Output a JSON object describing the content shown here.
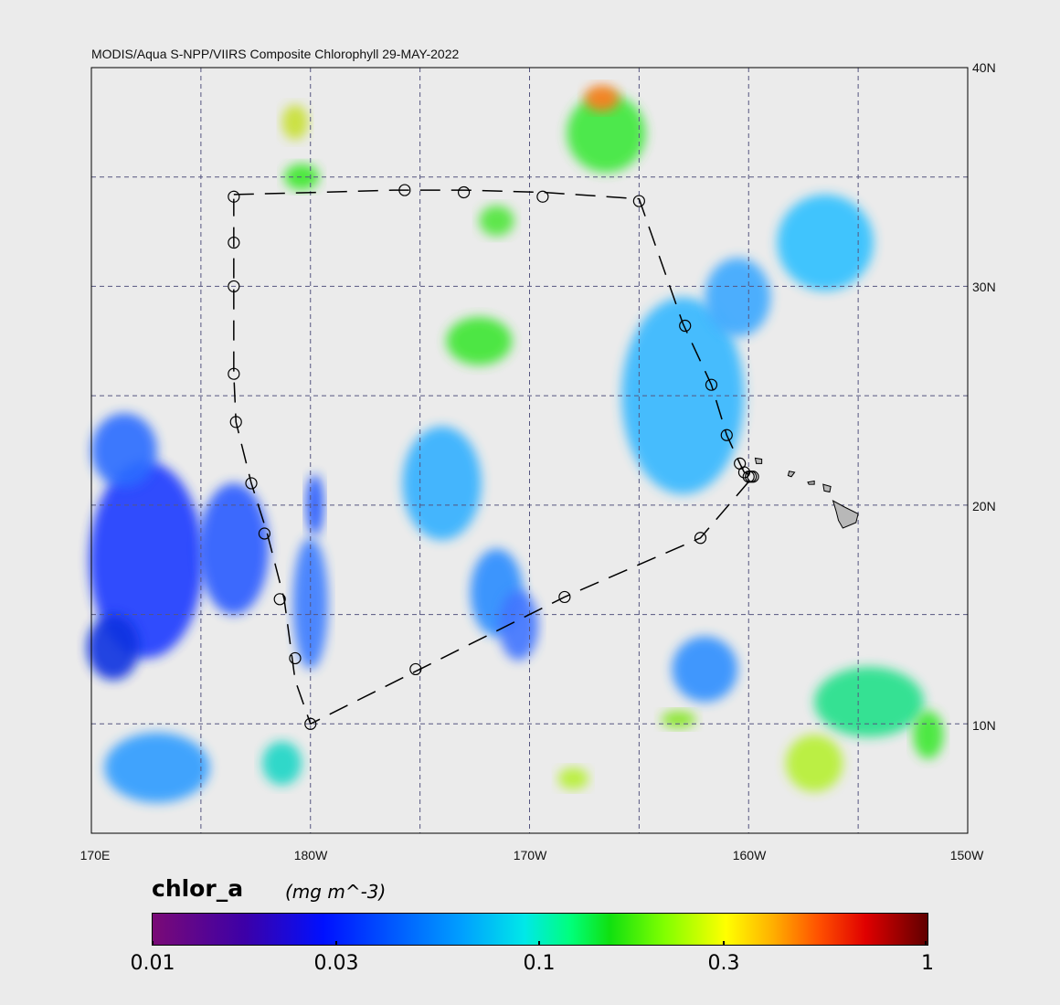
{
  "title": "MODIS/Aqua S-NPP/VIIRS Composite Chlorophyll 29-MAY-2022",
  "lat_labels": [
    "40N",
    "30N",
    "20N",
    "10N"
  ],
  "lon_labels": [
    "170E",
    "180W",
    "170W",
    "160W",
    "150W"
  ],
  "colorbar": {
    "variable": "chlor_a",
    "units": "(mg m^-3)",
    "tick_labels": [
      "0.01",
      "0.03",
      "0.1",
      "0.3",
      "1"
    ]
  },
  "map_extent": {
    "lon_min": 170,
    "lon_max": 210,
    "lat_min": 5,
    "lat_max": 40
  },
  "cruise_track": [
    [
      176.5,
      34.2
    ],
    [
      180.5,
      34.3
    ],
    [
      183.8,
      34.4
    ],
    [
      187.0,
      34.4
    ],
    [
      190.6,
      34.3
    ],
    [
      195.0,
      34.0
    ],
    [
      197.0,
      28.3
    ],
    [
      198.3,
      25.5
    ],
    [
      199.0,
      23.2
    ],
    [
      199.6,
      21.9
    ],
    [
      199.8,
      21.5
    ],
    [
      200.0,
      21.4
    ],
    [
      200.1,
      21.3
    ],
    [
      200.2,
      21.3
    ],
    [
      197.8,
      18.5
    ],
    [
      191.6,
      15.8
    ],
    [
      185.0,
      12.5
    ],
    [
      180.0,
      10.0
    ],
    [
      179.3,
      12.0
    ],
    [
      178.8,
      15.7
    ],
    [
      178.0,
      18.8
    ],
    [
      177.3,
      21.0
    ],
    [
      176.6,
      23.8
    ],
    [
      176.5,
      26.0
    ],
    [
      176.5,
      30.0
    ],
    [
      176.5,
      32.0
    ],
    [
      176.5,
      34.0
    ]
  ],
  "stations": [
    [
      176.5,
      34.1
    ],
    [
      184.3,
      34.4
    ],
    [
      187.0,
      34.3
    ],
    [
      190.6,
      34.1
    ],
    [
      195.0,
      33.9
    ],
    [
      197.1,
      28.2
    ],
    [
      198.3,
      25.5
    ],
    [
      199.0,
      23.2
    ],
    [
      199.6,
      21.9
    ],
    [
      199.8,
      21.5
    ],
    [
      200.0,
      21.3
    ],
    [
      200.1,
      21.3
    ],
    [
      200.2,
      21.3
    ],
    [
      197.8,
      18.5
    ],
    [
      191.6,
      15.8
    ],
    [
      184.8,
      12.5
    ],
    [
      180.0,
      10.0
    ],
    [
      179.3,
      13.0
    ],
    [
      178.6,
      15.7
    ],
    [
      177.9,
      18.7
    ],
    [
      177.3,
      21.0
    ],
    [
      176.6,
      23.8
    ],
    [
      176.5,
      26.0
    ],
    [
      176.5,
      30.0
    ],
    [
      176.5,
      32.0
    ]
  ],
  "chlor_patches": [
    {
      "lon": 172.5,
      "lat": 17.5,
      "rx": 2.6,
      "ry": 4.5,
      "color": "#1a3bff"
    },
    {
      "lon": 176.5,
      "lat": 18.0,
      "rx": 1.6,
      "ry": 3.0,
      "color": "#2a5cff"
    },
    {
      "lon": 171.5,
      "lat": 22.5,
      "rx": 1.5,
      "ry": 1.7,
      "color": "#2b6cff"
    },
    {
      "lon": 171.0,
      "lat": 13.5,
      "rx": 1.2,
      "ry": 1.5,
      "color": "#1030e0"
    },
    {
      "lon": 173.0,
      "lat": 8.0,
      "rx": 2.4,
      "ry": 1.6,
      "color": "#2e9cff"
    },
    {
      "lon": 180.2,
      "lat": 20.0,
      "rx": 0.4,
      "ry": 1.4,
      "color": "#1d55ff"
    },
    {
      "lon": 180.0,
      "lat": 15.5,
      "rx": 0.8,
      "ry": 3.0,
      "color": "#3b7bff"
    },
    {
      "lon": 178.7,
      "lat": 8.2,
      "rx": 0.9,
      "ry": 1.0,
      "color": "#1ed6c6"
    },
    {
      "lon": 186.0,
      "lat": 21.0,
      "rx": 1.8,
      "ry": 2.6,
      "color": "#33b0ff"
    },
    {
      "lon": 188.5,
      "lat": 16.0,
      "rx": 1.2,
      "ry": 2.0,
      "color": "#2a8cff"
    },
    {
      "lon": 189.5,
      "lat": 14.5,
      "rx": 0.9,
      "ry": 1.6,
      "color": "#3f74ff"
    },
    {
      "lon": 187.7,
      "lat": 27.5,
      "rx": 1.5,
      "ry": 1.1,
      "color": "#3ee632"
    },
    {
      "lon": 188.5,
      "lat": 33.0,
      "rx": 0.8,
      "ry": 0.7,
      "color": "#4fe63a"
    },
    {
      "lon": 179.6,
      "lat": 35.0,
      "rx": 0.8,
      "ry": 0.6,
      "color": "#3be82b"
    },
    {
      "lon": 179.3,
      "lat": 37.5,
      "rx": 0.6,
      "ry": 0.8,
      "color": "#c8e030"
    },
    {
      "lon": 193.5,
      "lat": 37.0,
      "rx": 1.8,
      "ry": 1.8,
      "color": "#3ee83a"
    },
    {
      "lon": 193.3,
      "lat": 38.6,
      "rx": 0.8,
      "ry": 0.6,
      "color": "#ff7a1a"
    },
    {
      "lon": 197.0,
      "lat": 25.0,
      "rx": 2.8,
      "ry": 4.5,
      "color": "#36b8ff"
    },
    {
      "lon": 199.5,
      "lat": 29.5,
      "rx": 1.5,
      "ry": 1.8,
      "color": "#3aa8ff"
    },
    {
      "lon": 203.5,
      "lat": 32.0,
      "rx": 2.2,
      "ry": 2.2,
      "color": "#2ec0ff"
    },
    {
      "lon": 205.5,
      "lat": 11.0,
      "rx": 2.5,
      "ry": 1.6,
      "color": "#22e08a"
    },
    {
      "lon": 198.0,
      "lat": 12.5,
      "rx": 1.5,
      "ry": 1.5,
      "color": "#2d8fff"
    },
    {
      "lon": 208.2,
      "lat": 9.5,
      "rx": 0.7,
      "ry": 1.1,
      "color": "#3de832"
    },
    {
      "lon": 196.8,
      "lat": 10.2,
      "rx": 0.8,
      "ry": 0.4,
      "color": "#86e628"
    },
    {
      "lon": 203.0,
      "lat": 8.2,
      "rx": 1.3,
      "ry": 1.3,
      "color": "#b6f030"
    },
    {
      "lon": 192.0,
      "lat": 7.5,
      "rx": 0.7,
      "ry": 0.5,
      "color": "#b6f030"
    }
  ],
  "islands": [
    [
      [
        203.85,
        20.2
      ],
      [
        204.4,
        19.9
      ],
      [
        205.0,
        19.6
      ],
      [
        204.9,
        19.2
      ],
      [
        204.3,
        18.95
      ],
      [
        204.1,
        19.3
      ],
      [
        204.0,
        19.7
      ]
    ],
    [
      [
        203.4,
        20.95
      ],
      [
        203.75,
        20.85
      ],
      [
        203.7,
        20.6
      ],
      [
        203.45,
        20.65
      ]
    ],
    [
      [
        202.7,
        21.05
      ],
      [
        203.0,
        21.1
      ],
      [
        203.0,
        20.95
      ],
      [
        202.75,
        20.95
      ]
    ],
    [
      [
        201.85,
        21.55
      ],
      [
        202.1,
        21.5
      ],
      [
        201.95,
        21.3
      ],
      [
        201.8,
        21.35
      ]
    ],
    [
      [
        200.3,
        22.15
      ],
      [
        200.6,
        22.1
      ],
      [
        200.6,
        21.9
      ],
      [
        200.35,
        21.9
      ]
    ]
  ]
}
